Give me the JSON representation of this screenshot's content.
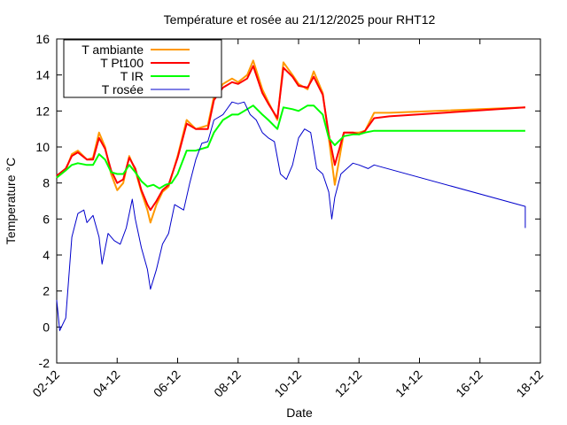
{
  "chart_data": {
    "type": "line",
    "title": "Température et rosée au 21/12/2025 pour RHT12",
    "xlabel": "Date",
    "ylabel": "Temperature °C",
    "x_ticks": [
      "02-12",
      "04-12",
      "06-12",
      "08-12",
      "10-12",
      "12-12",
      "14-12",
      "16-12",
      "18-12"
    ],
    "xlim": [
      2,
      18
    ],
    "ylim": [
      -2,
      16
    ],
    "y_ticks": [
      -2,
      0,
      2,
      4,
      6,
      8,
      10,
      12,
      14,
      16
    ],
    "grid": false,
    "legend_position": "top-left",
    "series": [
      {
        "name": "T ambiante",
        "color": "#ff9900",
        "points": [
          [
            2.0,
            8.3
          ],
          [
            2.3,
            8.7
          ],
          [
            2.5,
            9.6
          ],
          [
            2.7,
            9.8
          ],
          [
            3.0,
            9.3
          ],
          [
            3.2,
            9.4
          ],
          [
            3.4,
            10.8
          ],
          [
            3.6,
            10.0
          ],
          [
            3.8,
            8.5
          ],
          [
            4.0,
            7.6
          ],
          [
            4.2,
            8.0
          ],
          [
            4.4,
            9.5
          ],
          [
            4.6,
            8.7
          ],
          [
            4.8,
            7.5
          ],
          [
            5.0,
            6.5
          ],
          [
            5.1,
            5.8
          ],
          [
            5.3,
            6.8
          ],
          [
            5.5,
            7.5
          ],
          [
            5.7,
            7.8
          ],
          [
            6.0,
            9.5
          ],
          [
            6.3,
            11.5
          ],
          [
            6.6,
            11.0
          ],
          [
            7.0,
            11.2
          ],
          [
            7.2,
            12.8
          ],
          [
            7.5,
            13.5
          ],
          [
            7.8,
            13.8
          ],
          [
            8.0,
            13.6
          ],
          [
            8.3,
            14.0
          ],
          [
            8.5,
            14.8
          ],
          [
            8.8,
            13.2
          ],
          [
            9.0,
            12.5
          ],
          [
            9.3,
            11.5
          ],
          [
            9.5,
            14.7
          ],
          [
            9.8,
            14.0
          ],
          [
            10.0,
            13.5
          ],
          [
            10.3,
            13.2
          ],
          [
            10.5,
            14.2
          ],
          [
            10.8,
            13.0
          ],
          [
            11.0,
            10.5
          ],
          [
            11.2,
            7.9
          ],
          [
            11.5,
            10.8
          ],
          [
            11.8,
            10.8
          ],
          [
            12.0,
            10.8
          ],
          [
            12.2,
            10.9
          ],
          [
            12.5,
            11.9
          ],
          [
            13.0,
            11.9
          ],
          [
            17.5,
            12.2
          ]
        ]
      },
      {
        "name": "T Pt100",
        "color": "#ff0000",
        "points": [
          [
            2.0,
            8.4
          ],
          [
            2.3,
            8.8
          ],
          [
            2.5,
            9.5
          ],
          [
            2.7,
            9.7
          ],
          [
            3.0,
            9.3
          ],
          [
            3.2,
            9.3
          ],
          [
            3.4,
            10.5
          ],
          [
            3.6,
            9.9
          ],
          [
            3.8,
            8.7
          ],
          [
            4.0,
            8.0
          ],
          [
            4.2,
            8.2
          ],
          [
            4.4,
            9.4
          ],
          [
            4.6,
            8.8
          ],
          [
            4.8,
            7.6
          ],
          [
            5.0,
            6.8
          ],
          [
            5.1,
            6.5
          ],
          [
            5.3,
            7.0
          ],
          [
            5.5,
            7.6
          ],
          [
            5.7,
            7.9
          ],
          [
            6.0,
            9.4
          ],
          [
            6.3,
            11.3
          ],
          [
            6.6,
            11.0
          ],
          [
            7.0,
            11.0
          ],
          [
            7.2,
            12.6
          ],
          [
            7.5,
            13.3
          ],
          [
            7.8,
            13.6
          ],
          [
            8.0,
            13.5
          ],
          [
            8.3,
            13.8
          ],
          [
            8.5,
            14.5
          ],
          [
            8.8,
            13.0
          ],
          [
            9.0,
            12.4
          ],
          [
            9.3,
            11.6
          ],
          [
            9.5,
            14.4
          ],
          [
            9.8,
            13.9
          ],
          [
            10.0,
            13.4
          ],
          [
            10.3,
            13.3
          ],
          [
            10.5,
            13.9
          ],
          [
            10.8,
            12.9
          ],
          [
            11.0,
            10.7
          ],
          [
            11.2,
            9.0
          ],
          [
            11.5,
            10.8
          ],
          [
            11.8,
            10.8
          ],
          [
            12.0,
            10.7
          ],
          [
            12.2,
            10.9
          ],
          [
            12.5,
            11.6
          ],
          [
            13.0,
            11.7
          ],
          [
            17.5,
            12.2
          ]
        ]
      },
      {
        "name": "T IR",
        "color": "#00ff00",
        "points": [
          [
            2.0,
            8.3
          ],
          [
            2.3,
            8.7
          ],
          [
            2.5,
            9.0
          ],
          [
            2.7,
            9.1
          ],
          [
            3.0,
            9.0
          ],
          [
            3.2,
            9.0
          ],
          [
            3.4,
            9.6
          ],
          [
            3.6,
            9.3
          ],
          [
            3.8,
            8.6
          ],
          [
            4.0,
            8.5
          ],
          [
            4.2,
            8.5
          ],
          [
            4.4,
            9.0
          ],
          [
            4.6,
            8.6
          ],
          [
            4.8,
            8.1
          ],
          [
            5.0,
            7.8
          ],
          [
            5.2,
            7.9
          ],
          [
            5.4,
            7.7
          ],
          [
            5.6,
            7.9
          ],
          [
            5.8,
            8.0
          ],
          [
            6.0,
            8.5
          ],
          [
            6.3,
            9.8
          ],
          [
            6.6,
            9.8
          ],
          [
            7.0,
            10.0
          ],
          [
            7.2,
            10.8
          ],
          [
            7.5,
            11.5
          ],
          [
            7.8,
            11.8
          ],
          [
            8.0,
            11.8
          ],
          [
            8.3,
            12.1
          ],
          [
            8.5,
            12.3
          ],
          [
            8.8,
            11.8
          ],
          [
            9.0,
            11.5
          ],
          [
            9.3,
            11.0
          ],
          [
            9.5,
            12.2
          ],
          [
            9.8,
            12.1
          ],
          [
            10.0,
            12.0
          ],
          [
            10.3,
            12.3
          ],
          [
            10.5,
            12.3
          ],
          [
            10.8,
            11.8
          ],
          [
            11.0,
            10.5
          ],
          [
            11.2,
            10.1
          ],
          [
            11.5,
            10.6
          ],
          [
            11.8,
            10.7
          ],
          [
            12.0,
            10.7
          ],
          [
            12.2,
            10.8
          ],
          [
            12.5,
            10.9
          ],
          [
            13.0,
            10.9
          ],
          [
            17.5,
            10.9
          ]
        ]
      },
      {
        "name": "T rosée",
        "color": "#0000cc",
        "points": [
          [
            2.0,
            1.5
          ],
          [
            2.1,
            -0.2
          ],
          [
            2.3,
            0.5
          ],
          [
            2.5,
            5.0
          ],
          [
            2.7,
            6.3
          ],
          [
            2.9,
            6.5
          ],
          [
            3.0,
            5.8
          ],
          [
            3.2,
            6.2
          ],
          [
            3.4,
            5.0
          ],
          [
            3.5,
            3.5
          ],
          [
            3.7,
            5.2
          ],
          [
            3.9,
            4.8
          ],
          [
            4.1,
            4.6
          ],
          [
            4.3,
            5.5
          ],
          [
            4.5,
            7.1
          ],
          [
            4.6,
            6.0
          ],
          [
            4.8,
            4.4
          ],
          [
            5.0,
            3.2
          ],
          [
            5.1,
            2.1
          ],
          [
            5.3,
            3.2
          ],
          [
            5.5,
            4.6
          ],
          [
            5.7,
            5.2
          ],
          [
            5.9,
            6.8
          ],
          [
            6.2,
            6.5
          ],
          [
            6.4,
            8.0
          ],
          [
            6.6,
            9.3
          ],
          [
            6.8,
            10.2
          ],
          [
            7.0,
            10.3
          ],
          [
            7.2,
            11.5
          ],
          [
            7.5,
            11.8
          ],
          [
            7.8,
            12.5
          ],
          [
            8.0,
            12.4
          ],
          [
            8.2,
            12.5
          ],
          [
            8.4,
            11.8
          ],
          [
            8.6,
            11.5
          ],
          [
            8.8,
            10.8
          ],
          [
            9.0,
            10.5
          ],
          [
            9.2,
            10.3
          ],
          [
            9.4,
            8.5
          ],
          [
            9.6,
            8.2
          ],
          [
            9.8,
            9.0
          ],
          [
            10.0,
            10.5
          ],
          [
            10.2,
            11.0
          ],
          [
            10.4,
            10.8
          ],
          [
            10.6,
            8.8
          ],
          [
            10.8,
            8.5
          ],
          [
            11.0,
            7.5
          ],
          [
            11.1,
            6.0
          ],
          [
            11.2,
            7.2
          ],
          [
            11.4,
            8.5
          ],
          [
            11.6,
            8.8
          ],
          [
            11.8,
            9.1
          ],
          [
            12.0,
            9.0
          ],
          [
            12.3,
            8.8
          ],
          [
            12.5,
            9.0
          ],
          [
            17.5,
            6.7
          ],
          [
            17.5,
            5.5
          ]
        ]
      }
    ]
  }
}
